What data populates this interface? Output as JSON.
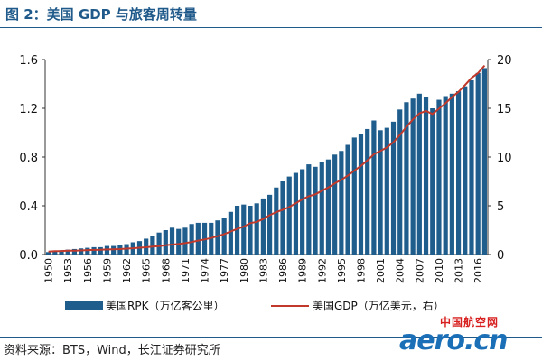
{
  "figure": {
    "title": "图 2：美国 GDP 与旅客周转量",
    "source": "资料来源：BTS，Wind，长江证券研究所"
  },
  "watermark": {
    "cn": "中国航空网",
    "en": "aero.cn"
  },
  "colors": {
    "bar": "#1f5d8c",
    "line": "#c0392b",
    "text": "#111111",
    "rule": "#1f5a8a"
  },
  "chart_data": {
    "type": "bar",
    "x": [
      1950,
      1951,
      1952,
      1953,
      1954,
      1955,
      1956,
      1957,
      1958,
      1959,
      1960,
      1961,
      1962,
      1963,
      1964,
      1965,
      1966,
      1967,
      1968,
      1969,
      1970,
      1971,
      1972,
      1973,
      1974,
      1975,
      1976,
      1977,
      1978,
      1979,
      1980,
      1981,
      1982,
      1983,
      1984,
      1985,
      1986,
      1987,
      1988,
      1989,
      1990,
      1991,
      1992,
      1993,
      1994,
      1995,
      1996,
      1997,
      1998,
      1999,
      2000,
      2001,
      2002,
      2003,
      2004,
      2005,
      2006,
      2007,
      2008,
      2009,
      2010,
      2011,
      2012,
      2013,
      2014,
      2015,
      2016,
      2017
    ],
    "x_tick_labels": [
      "1950",
      "1953",
      "1956",
      "1959",
      "1962",
      "1965",
      "1968",
      "1971",
      "1974",
      "1977",
      "1980",
      "1983",
      "1986",
      "1989",
      "1992",
      "1995",
      "1998",
      "2001",
      "2004",
      "2007",
      "2010",
      "2013",
      "2016"
    ],
    "y_left": {
      "range": [
        0,
        1.6
      ],
      "ticks": [
        "0.0",
        "0.4",
        "0.8",
        "1.2",
        "1.6"
      ]
    },
    "y_right": {
      "range": [
        0,
        20
      ],
      "ticks": [
        "0",
        "5",
        "10",
        "15",
        "20"
      ]
    },
    "legend_position": "bottom",
    "series": [
      {
        "name": "美国RPK（万亿客公里）",
        "type": "bar",
        "axis": "left",
        "values": [
          0.02,
          0.03,
          0.035,
          0.04,
          0.045,
          0.05,
          0.055,
          0.06,
          0.06,
          0.07,
          0.07,
          0.075,
          0.085,
          0.1,
          0.11,
          0.13,
          0.15,
          0.18,
          0.2,
          0.22,
          0.21,
          0.22,
          0.25,
          0.26,
          0.26,
          0.26,
          0.28,
          0.3,
          0.35,
          0.4,
          0.41,
          0.4,
          0.42,
          0.46,
          0.49,
          0.55,
          0.6,
          0.64,
          0.67,
          0.7,
          0.74,
          0.72,
          0.76,
          0.78,
          0.82,
          0.85,
          0.9,
          0.96,
          0.99,
          1.03,
          1.1,
          1.02,
          1.04,
          1.09,
          1.19,
          1.25,
          1.28,
          1.32,
          1.29,
          1.2,
          1.27,
          1.3,
          1.32,
          1.34,
          1.38,
          1.43,
          1.49,
          1.53
        ]
      },
      {
        "name": "美国GDP（万亿美元，右）",
        "type": "line",
        "axis": "right",
        "values": [
          0.3,
          0.35,
          0.36,
          0.39,
          0.39,
          0.42,
          0.45,
          0.47,
          0.48,
          0.52,
          0.54,
          0.56,
          0.6,
          0.64,
          0.69,
          0.74,
          0.81,
          0.86,
          0.94,
          1.02,
          1.07,
          1.17,
          1.28,
          1.43,
          1.55,
          1.69,
          1.88,
          2.09,
          2.36,
          2.63,
          2.86,
          3.21,
          3.35,
          3.64,
          4.04,
          4.35,
          4.59,
          4.87,
          5.25,
          5.66,
          5.98,
          6.17,
          6.54,
          6.88,
          7.31,
          7.66,
          8.1,
          8.61,
          9.09,
          9.66,
          10.29,
          10.62,
          10.98,
          11.51,
          12.27,
          13.09,
          13.86,
          14.48,
          14.72,
          14.42,
          14.96,
          15.52,
          16.16,
          16.69,
          17.39,
          18.12,
          18.62,
          19.39
        ]
      }
    ]
  }
}
